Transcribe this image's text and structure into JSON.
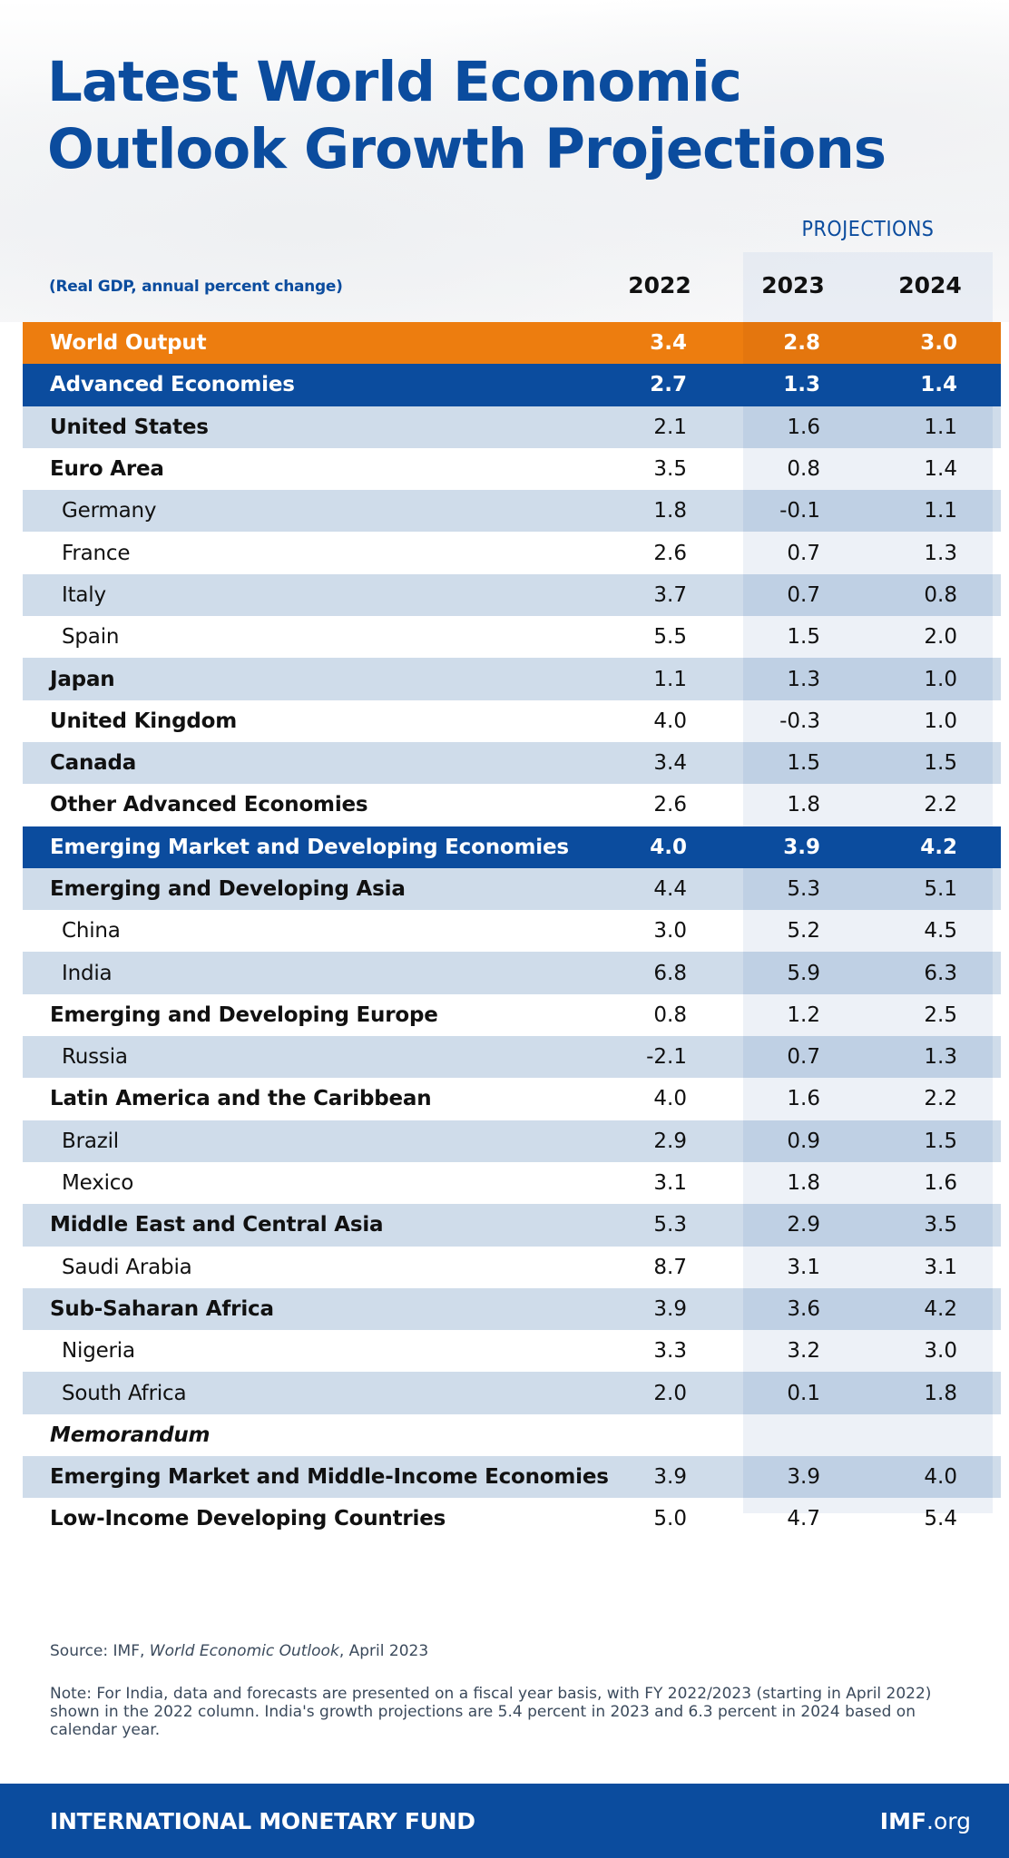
{
  "header": {
    "title_line1": "Latest World Economic",
    "title_line2": "Outlook Growth Projections",
    "projections_label": "PROJECTIONS",
    "subtitle": "(Real GDP, annual percent change)"
  },
  "colors": {
    "brand_blue": "#0b4c9e",
    "world_orange": "#ed7d0f",
    "row_shade": "#cfdcea"
  },
  "chart_data": {
    "type": "table",
    "title": "Latest World Economic Outlook Growth Projections",
    "subtitle": "(Real GDP, annual percent change)",
    "projection_header": "PROJECTIONS",
    "columns": [
      "2022",
      "2023",
      "2024"
    ],
    "projected_columns": [
      "2023",
      "2024"
    ],
    "rows": [
      {
        "label": "World Output",
        "style": "world",
        "values": [
          "3.4",
          "2.8",
          "3.0"
        ]
      },
      {
        "label": "Advanced Economies",
        "style": "group",
        "values": [
          "2.7",
          "1.3",
          "1.4"
        ]
      },
      {
        "label": "United States",
        "style": "region",
        "values": [
          "2.1",
          "1.6",
          "1.1"
        ]
      },
      {
        "label": "Euro Area",
        "style": "region",
        "values": [
          "3.5",
          "0.8",
          "1.4"
        ]
      },
      {
        "label": "Germany",
        "style": "country",
        "values": [
          "1.8",
          "-0.1",
          "1.1"
        ]
      },
      {
        "label": "France",
        "style": "country",
        "values": [
          "2.6",
          "0.7",
          "1.3"
        ]
      },
      {
        "label": "Italy",
        "style": "country",
        "values": [
          "3.7",
          "0.7",
          "0.8"
        ]
      },
      {
        "label": "Spain",
        "style": "country",
        "values": [
          "5.5",
          "1.5",
          "2.0"
        ]
      },
      {
        "label": "Japan",
        "style": "region",
        "values": [
          "1.1",
          "1.3",
          "1.0"
        ]
      },
      {
        "label": "United Kingdom",
        "style": "region",
        "values": [
          "4.0",
          "-0.3",
          "1.0"
        ]
      },
      {
        "label": "Canada",
        "style": "region",
        "values": [
          "3.4",
          "1.5",
          "1.5"
        ]
      },
      {
        "label": "Other Advanced Economies",
        "style": "region",
        "values": [
          "2.6",
          "1.8",
          "2.2"
        ]
      },
      {
        "label": "Emerging Market and Developing Economies",
        "style": "group",
        "values": [
          "4.0",
          "3.9",
          "4.2"
        ]
      },
      {
        "label": "Emerging and Developing Asia",
        "style": "region",
        "values": [
          "4.4",
          "5.3",
          "5.1"
        ]
      },
      {
        "label": "China",
        "style": "country",
        "values": [
          "3.0",
          "5.2",
          "4.5"
        ]
      },
      {
        "label": "India",
        "style": "country",
        "values": [
          "6.8",
          "5.9",
          "6.3"
        ]
      },
      {
        "label": "Emerging and Developing Europe",
        "style": "region",
        "values": [
          "0.8",
          "1.2",
          "2.5"
        ]
      },
      {
        "label": "Russia",
        "style": "country",
        "values": [
          "-2.1",
          "0.7",
          "1.3"
        ]
      },
      {
        "label": "Latin America and the Caribbean",
        "style": "region",
        "values": [
          "4.0",
          "1.6",
          "2.2"
        ]
      },
      {
        "label": "Brazil",
        "style": "country",
        "values": [
          "2.9",
          "0.9",
          "1.5"
        ]
      },
      {
        "label": "Mexico",
        "style": "country",
        "values": [
          "3.1",
          "1.8",
          "1.6"
        ]
      },
      {
        "label": "Middle East and Central Asia",
        "style": "region",
        "values": [
          "5.3",
          "2.9",
          "3.5"
        ]
      },
      {
        "label": "Saudi Arabia",
        "style": "country",
        "values": [
          "8.7",
          "3.1",
          "3.1"
        ]
      },
      {
        "label": "Sub-Saharan Africa",
        "style": "region",
        "values": [
          "3.9",
          "3.6",
          "4.2"
        ]
      },
      {
        "label": "Nigeria",
        "style": "country",
        "values": [
          "3.3",
          "3.2",
          "3.0"
        ]
      },
      {
        "label": "South Africa",
        "style": "country",
        "values": [
          "2.0",
          "0.1",
          "1.8"
        ]
      },
      {
        "label": "Memorandum",
        "style": "memo",
        "values": [
          "",
          "",
          ""
        ]
      },
      {
        "label": "Emerging Market and Middle-Income Economies",
        "style": "region",
        "values": [
          "3.9",
          "3.9",
          "4.0"
        ]
      },
      {
        "label": "Low-Income Developing Countries",
        "style": "region",
        "values": [
          "5.0",
          "4.7",
          "5.4"
        ]
      }
    ]
  },
  "notes": {
    "source_prefix": "Source: IMF, ",
    "source_title": "World Economic Outlook",
    "source_suffix": ", April 2023",
    "note": "Note: For India, data and forecasts are presented on a fiscal year basis, with FY 2022/2023 (starting in April 2022) shown in the 2022 column. India's growth projections are 5.4 percent in 2023 and 6.3 percent in 2024 based on calendar year."
  },
  "footer": {
    "organization": "INTERNATIONAL MONETARY FUND",
    "site_bold": "IMF",
    "site_rest": ".org"
  }
}
